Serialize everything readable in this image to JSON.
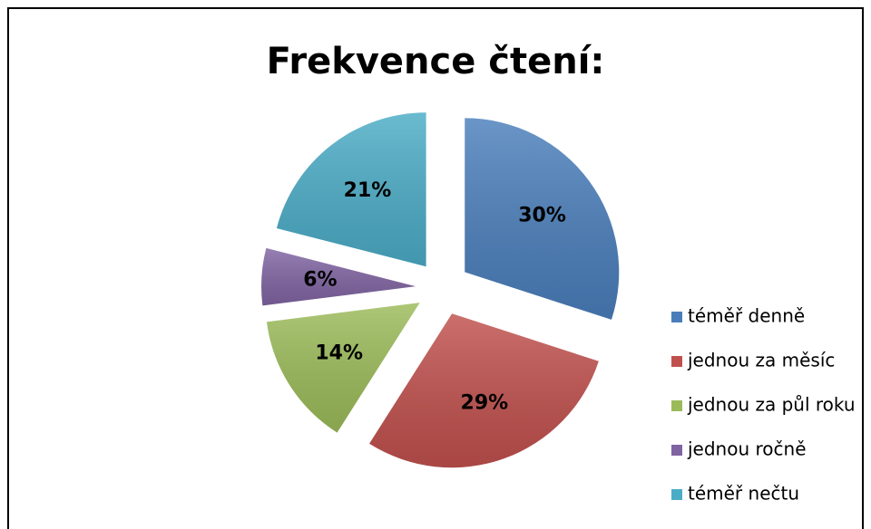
{
  "chart_data": {
    "type": "pie",
    "title": "Frekvence čtení:",
    "categories": [
      "téměř denně",
      "jednou za měsíc",
      "jednou za půl roku",
      "jednou ročně",
      "téměř nečtu"
    ],
    "values": [
      30,
      29,
      14,
      6,
      21
    ],
    "value_labels": [
      "30%",
      "29%",
      "14%",
      "6%",
      "21%"
    ],
    "colors": [
      "#4a7ebb",
      "#c0504d",
      "#9bbb59",
      "#8064a2",
      "#4bacc6"
    ],
    "legend": "right"
  }
}
